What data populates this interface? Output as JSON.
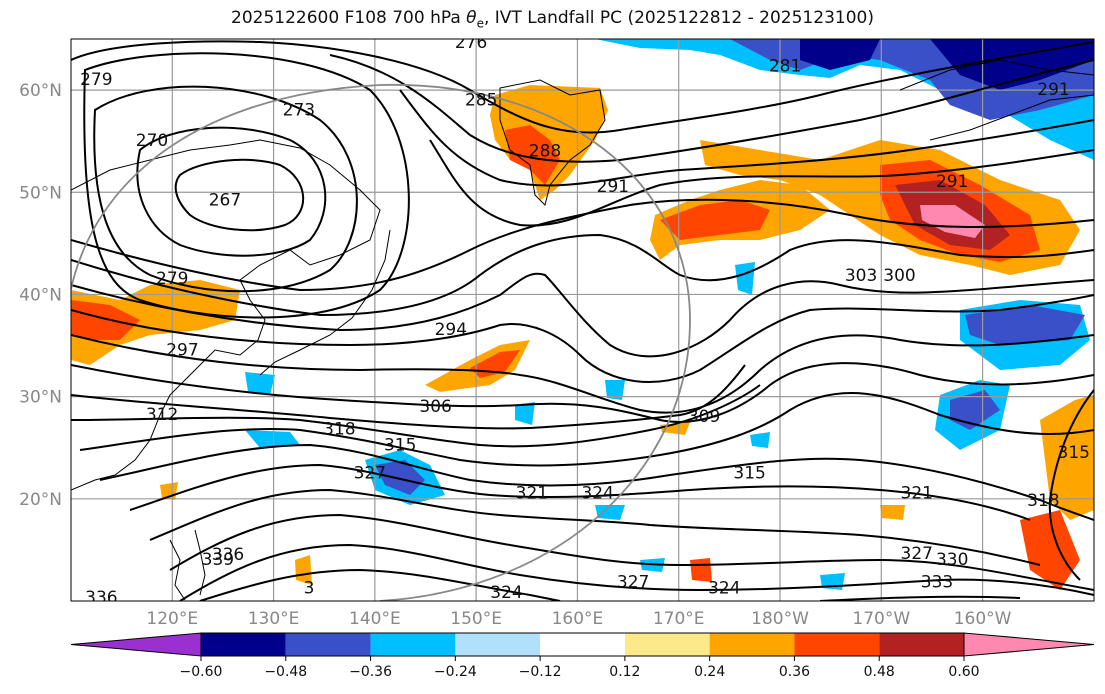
{
  "chart_data": {
    "type": "heatmap",
    "title": "2025122600 F108 700 hPa θe, IVT Landfall PC (2025122812 - 2025123100)",
    "title_parts": {
      "prefix": "2025122600 F108 700 hPa ",
      "symbol": "θ",
      "subscript": "e",
      "suffix": ", IVT Landfall PC (2025122812 - 2025123100)"
    },
    "xlim": [
      110,
      211
    ],
    "ylim": [
      10,
      65
    ],
    "lat_ticks": [
      {
        "value": 20,
        "label": "20°N"
      },
      {
        "value": 30,
        "label": "30°N"
      },
      {
        "value": 40,
        "label": "40°N"
      },
      {
        "value": 50,
        "label": "50°N"
      },
      {
        "value": 60,
        "label": "60°N"
      }
    ],
    "lon_ticks": [
      {
        "value": 120,
        "label": "120°E"
      },
      {
        "value": 130,
        "label": "130°E"
      },
      {
        "value": 140,
        "label": "140°E"
      },
      {
        "value": 150,
        "label": "150°E"
      },
      {
        "value": 160,
        "label": "160°E"
      },
      {
        "value": 170,
        "label": "170°E"
      },
      {
        "value": 180,
        "label": "180°W"
      },
      {
        "value": 190,
        "label": "170°W"
      },
      {
        "value": 200,
        "label": "160°W"
      }
    ],
    "grid": true,
    "colorbar": {
      "levels": [
        -0.6,
        -0.48,
        -0.36,
        -0.24,
        -0.12,
        0.12,
        0.24,
        0.36,
        0.48,
        0.6
      ],
      "tick_labels": [
        "−0.60",
        "−0.48",
        "−0.36",
        "−0.24",
        "−0.12",
        "0.12",
        "0.24",
        "0.36",
        "0.48",
        "0.60"
      ],
      "colors": [
        "#9b30d0",
        "#00008b",
        "#3a50c8",
        "#00bfff",
        "#b0e0fa",
        "#ffffff",
        "#fce98a",
        "#ffa500",
        "#ff4500",
        "#b22222",
        "#ff88b0"
      ],
      "extend": "both"
    },
    "contour_labels": [
      {
        "text": "276",
        "lon": 149.5,
        "lat": 64.6
      },
      {
        "text": "279",
        "lon": 112.5,
        "lat": 61.0
      },
      {
        "text": "273",
        "lon": 132.5,
        "lat": 58.0
      },
      {
        "text": "270",
        "lon": 118.0,
        "lat": 55.0
      },
      {
        "text": "267",
        "lon": 125.2,
        "lat": 49.2
      },
      {
        "text": "285",
        "lon": 150.5,
        "lat": 59.0
      },
      {
        "text": "288",
        "lon": 156.8,
        "lat": 54.0
      },
      {
        "text": "291",
        "lon": 163.5,
        "lat": 50.5
      },
      {
        "text": "281",
        "lon": 180.5,
        "lat": 62.3
      },
      {
        "text": "291",
        "lon": 197.0,
        "lat": 51.0
      },
      {
        "text": "291",
        "lon": 207.0,
        "lat": 60.0
      },
      {
        "text": "303",
        "lon": 188.0,
        "lat": 41.8
      },
      {
        "text": "300",
        "lon": 191.8,
        "lat": 41.8
      },
      {
        "text": "279",
        "lon": 120.0,
        "lat": 41.5
      },
      {
        "text": "294",
        "lon": 147.5,
        "lat": 36.5
      },
      {
        "text": "297",
        "lon": 121.0,
        "lat": 34.5
      },
      {
        "text": "312",
        "lon": 119.0,
        "lat": 28.2
      },
      {
        "text": "306",
        "lon": 146.0,
        "lat": 29.0
      },
      {
        "text": "318",
        "lon": 136.5,
        "lat": 26.8
      },
      {
        "text": "315",
        "lon": 142.5,
        "lat": 25.2
      },
      {
        "text": "327",
        "lon": 139.5,
        "lat": 22.5
      },
      {
        "text": "309",
        "lon": 172.5,
        "lat": 28.0
      },
      {
        "text": "315",
        "lon": 177.0,
        "lat": 22.5
      },
      {
        "text": "321",
        "lon": 155.5,
        "lat": 20.5
      },
      {
        "text": "324",
        "lon": 162.0,
        "lat": 20.5
      },
      {
        "text": "321",
        "lon": 193.5,
        "lat": 20.5
      },
      {
        "text": "318",
        "lon": 206.0,
        "lat": 19.8
      },
      {
        "text": "315",
        "lon": 209.0,
        "lat": 24.5
      },
      {
        "text": "336",
        "lon": 125.5,
        "lat": 14.5
      },
      {
        "text": "339",
        "lon": 124.5,
        "lat": 14.0
      },
      {
        "text": "327",
        "lon": 193.5,
        "lat": 14.6
      },
      {
        "text": "330",
        "lon": 197.0,
        "lat": 14.0
      },
      {
        "text": "333",
        "lon": 195.5,
        "lat": 11.8
      },
      {
        "text": "327",
        "lon": 165.5,
        "lat": 11.8
      },
      {
        "text": "324",
        "lon": 174.5,
        "lat": 11.2
      },
      {
        "text": "324",
        "lon": 153.0,
        "lat": 10.8
      },
      {
        "text": "336",
        "lon": 113.0,
        "lat": 10.3
      },
      {
        "text": "3",
        "lon": 133.5,
        "lat": 11.2
      }
    ]
  }
}
